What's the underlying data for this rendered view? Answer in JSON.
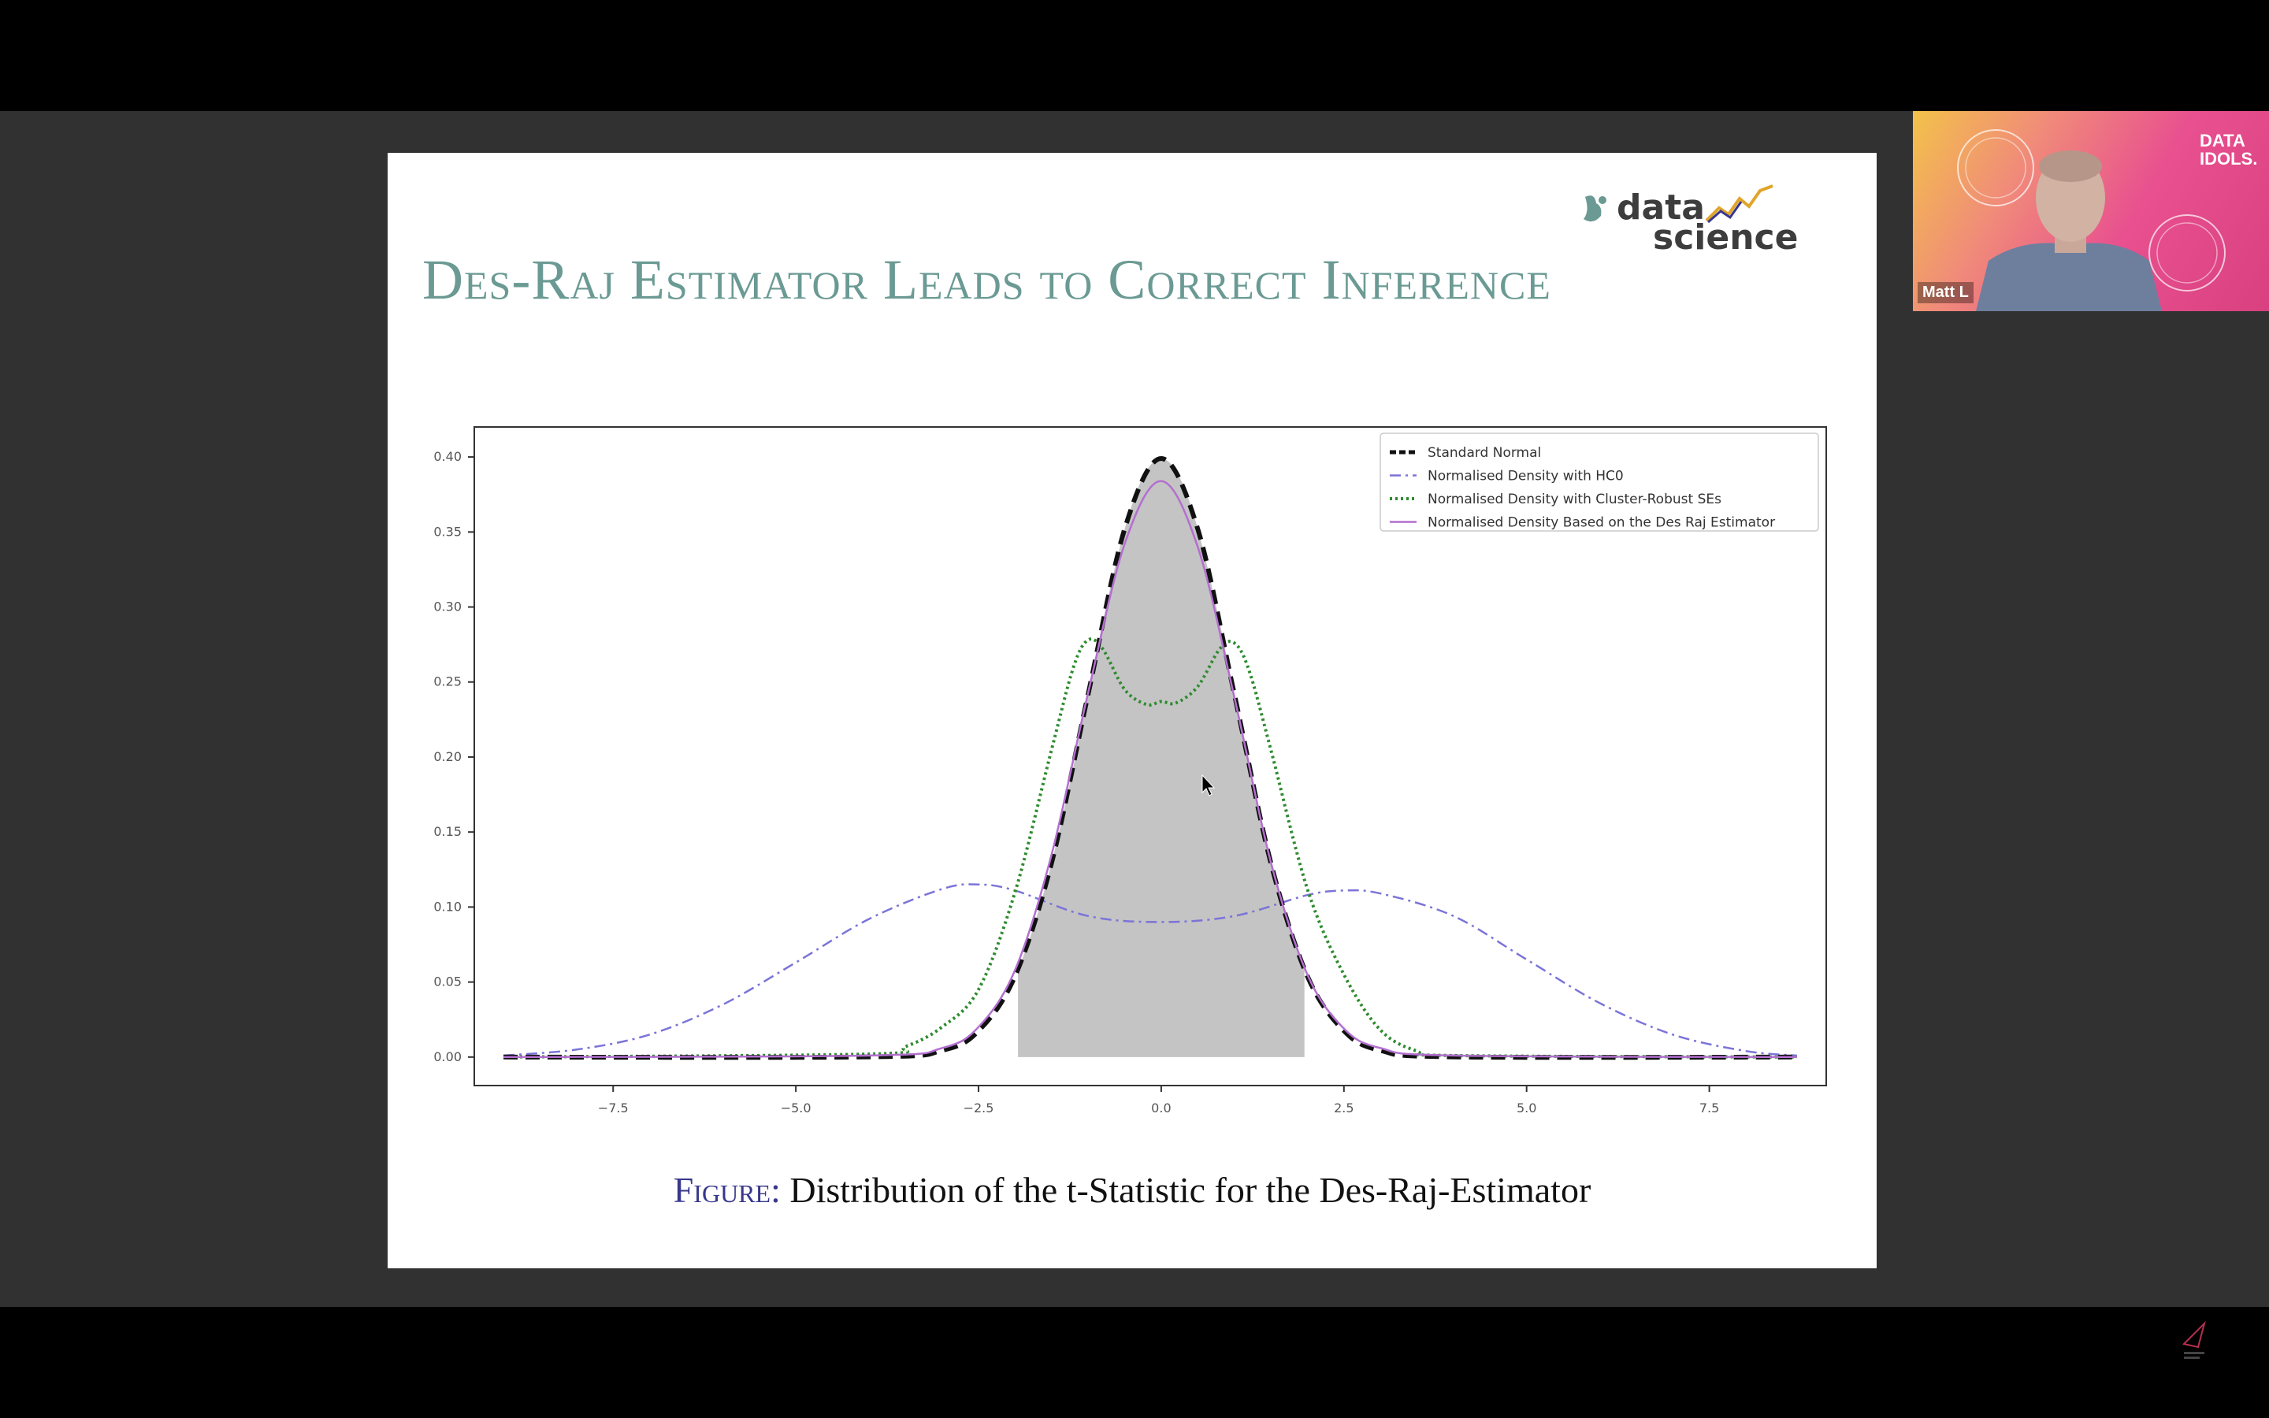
{
  "slide": {
    "title": "Des-Raj Estimator Leads to Correct Inference",
    "logo_word_1": "data",
    "logo_word_2": "science",
    "caption_label": "Figure:",
    "caption_text": " Distribution of the t-Statistic for the Des-Raj-Estimator"
  },
  "webcam": {
    "participant_name": "Matt L",
    "brand_text": "DATA IDOLS."
  },
  "chart_data": {
    "type": "line",
    "title": "",
    "xlabel": "",
    "ylabel": "",
    "xlim": [
      -9.4,
      9.1
    ],
    "ylim": [
      -0.019,
      0.42
    ],
    "xticks": [
      "-7.5",
      "-5.0",
      "-2.5",
      "0.0",
      "2.5",
      "5.0",
      "7.5"
    ],
    "yticks": [
      "0.00",
      "0.05",
      "0.10",
      "0.15",
      "0.20",
      "0.25",
      "0.30",
      "0.35",
      "0.40"
    ],
    "legend_position": "top-right",
    "shaded_region": {
      "x_from": -1.96,
      "x_to": 1.96,
      "color": "#c4c4c4"
    },
    "series": [
      {
        "name": "Standard Normal",
        "color": "#111111",
        "style": "dashed-thick",
        "x": [
          -9,
          -4,
          -3,
          -2.5,
          -2,
          -1.5,
          -1,
          -0.5,
          0,
          0.5,
          1,
          1.5,
          2,
          2.5,
          3,
          4,
          8.7
        ],
        "y": [
          0,
          0.0001,
          0.0044,
          0.0175,
          0.054,
          0.1295,
          0.242,
          0.352,
          0.399,
          0.352,
          0.242,
          0.1295,
          0.054,
          0.0175,
          0.0044,
          0.0001,
          0
        ]
      },
      {
        "name": "Normalised Density with HC0",
        "color": "#7b74d8",
        "style": "dashdot",
        "x": [
          -9,
          -8,
          -7,
          -6,
          -5,
          -4,
          -3,
          -2.5,
          -2,
          -1,
          0,
          1,
          2,
          2.5,
          3,
          4,
          5,
          6,
          7,
          8,
          8.7
        ],
        "y": [
          0.001,
          0.005,
          0.015,
          0.035,
          0.063,
          0.092,
          0.112,
          0.115,
          0.111,
          0.094,
          0.09,
          0.094,
          0.108,
          0.111,
          0.109,
          0.094,
          0.065,
          0.036,
          0.015,
          0.004,
          0.001
        ]
      },
      {
        "name": "Normalised Density with Cluster-Robust SEs",
        "color": "#2e8b2e",
        "style": "dotted-marker",
        "x": [
          -9,
          -4,
          -3.5,
          -3,
          -2.5,
          -2,
          -1.5,
          -1.2,
          -1,
          -0.8,
          -0.5,
          -0.2,
          0,
          0.2,
          0.5,
          0.8,
          1,
          1.2,
          1.5,
          2,
          2.5,
          3,
          3.5,
          4,
          8.7
        ],
        "y": [
          0,
          0.002,
          0.007,
          0.02,
          0.045,
          0.11,
          0.205,
          0.26,
          0.278,
          0.272,
          0.245,
          0.235,
          0.237,
          0.236,
          0.247,
          0.272,
          0.276,
          0.258,
          0.205,
          0.112,
          0.055,
          0.018,
          0.004,
          0.001,
          0
        ]
      },
      {
        "name": "Normalised Density Based on the Des Raj Estimator",
        "color": "#b36fcf",
        "style": "solid",
        "x": [
          -9,
          -4,
          -3,
          -2.5,
          -2,
          -1.5,
          -1,
          -0.5,
          0,
          0.5,
          1,
          1.5,
          2,
          2.5,
          3,
          4,
          8.7
        ],
        "y": [
          0,
          0.001,
          0.006,
          0.02,
          0.058,
          0.135,
          0.243,
          0.342,
          0.384,
          0.34,
          0.24,
          0.13,
          0.055,
          0.019,
          0.006,
          0.001,
          0
        ]
      }
    ]
  }
}
